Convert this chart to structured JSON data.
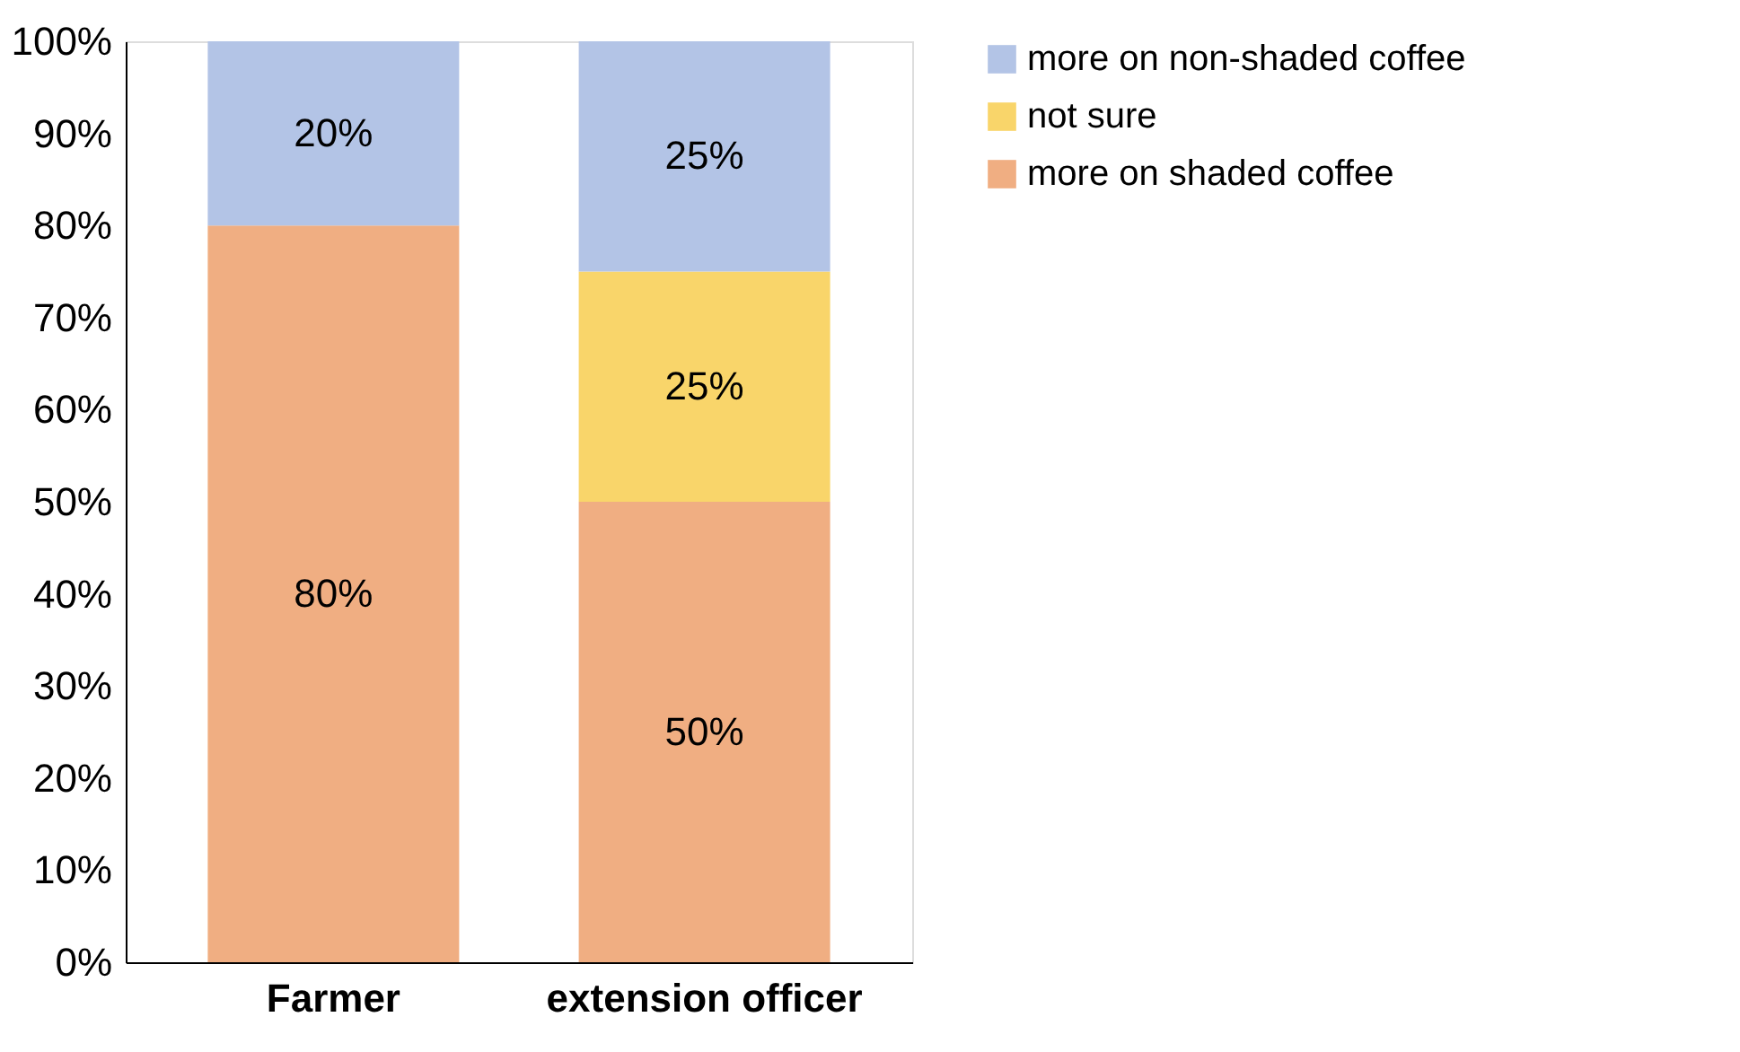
{
  "chart_data": {
    "type": "bar",
    "stacked": true,
    "categories": [
      "Farmer",
      "extension officer"
    ],
    "series": [
      {
        "name": "more on shaded coffee",
        "color": "#f0ae82",
        "values": [
          80,
          50
        ],
        "value_labels": [
          "80%",
          "50%"
        ]
      },
      {
        "name": "not sure",
        "color": "#f9d56a",
        "values": [
          0,
          25
        ],
        "value_labels": [
          null,
          "25%"
        ]
      },
      {
        "name": "more on non-shaded coffee",
        "color": "#b3c4e6",
        "values": [
          20,
          25
        ],
        "value_labels": [
          "20%",
          "25%"
        ]
      }
    ],
    "ylim": [
      0,
      100
    ],
    "yticks": [
      {
        "value": 0,
        "label": "0%"
      },
      {
        "value": 10,
        "label": "10%"
      },
      {
        "value": 20,
        "label": "20%"
      },
      {
        "value": 30,
        "label": "30%"
      },
      {
        "value": 40,
        "label": "40%"
      },
      {
        "value": 50,
        "label": "50%"
      },
      {
        "value": 60,
        "label": "60%"
      },
      {
        "value": 70,
        "label": "70%"
      },
      {
        "value": 80,
        "label": "80%"
      },
      {
        "value": 90,
        "label": "90%"
      },
      {
        "value": 100,
        "label": "100%"
      }
    ],
    "grid": false,
    "legend": "right"
  }
}
